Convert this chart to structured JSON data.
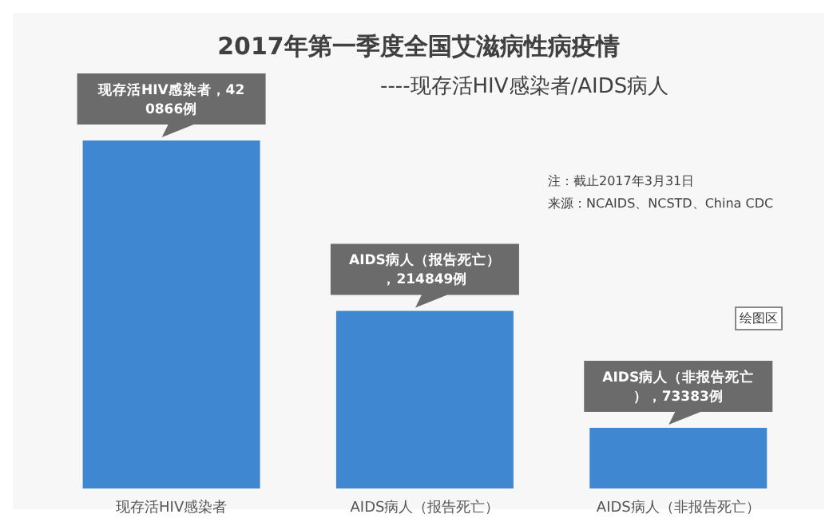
{
  "chart_data": {
    "type": "bar",
    "title": "2017年第一季度全国艾滋病性病疫情",
    "subtitle": "----现存活HIV感染者/AIDS病人",
    "categories": [
      "现存活HIV感染者",
      "AIDS病人（报告死亡）",
      "AIDS病人（非报告死亡）"
    ],
    "values": [
      420866,
      214849,
      73383
    ],
    "color": "#3f87d0",
    "value_labels": [
      "现存活HIV感染者，420866例",
      "AIDS病人（报告死亡），214849例",
      "AIDS病人（非报告死亡），73383例"
    ],
    "annotations": [
      "注：截止2017年3月31日",
      "来源：NCAIDS、NCSTD、China CDC",
      "绘图区"
    ],
    "grid": false,
    "legend": false
  }
}
